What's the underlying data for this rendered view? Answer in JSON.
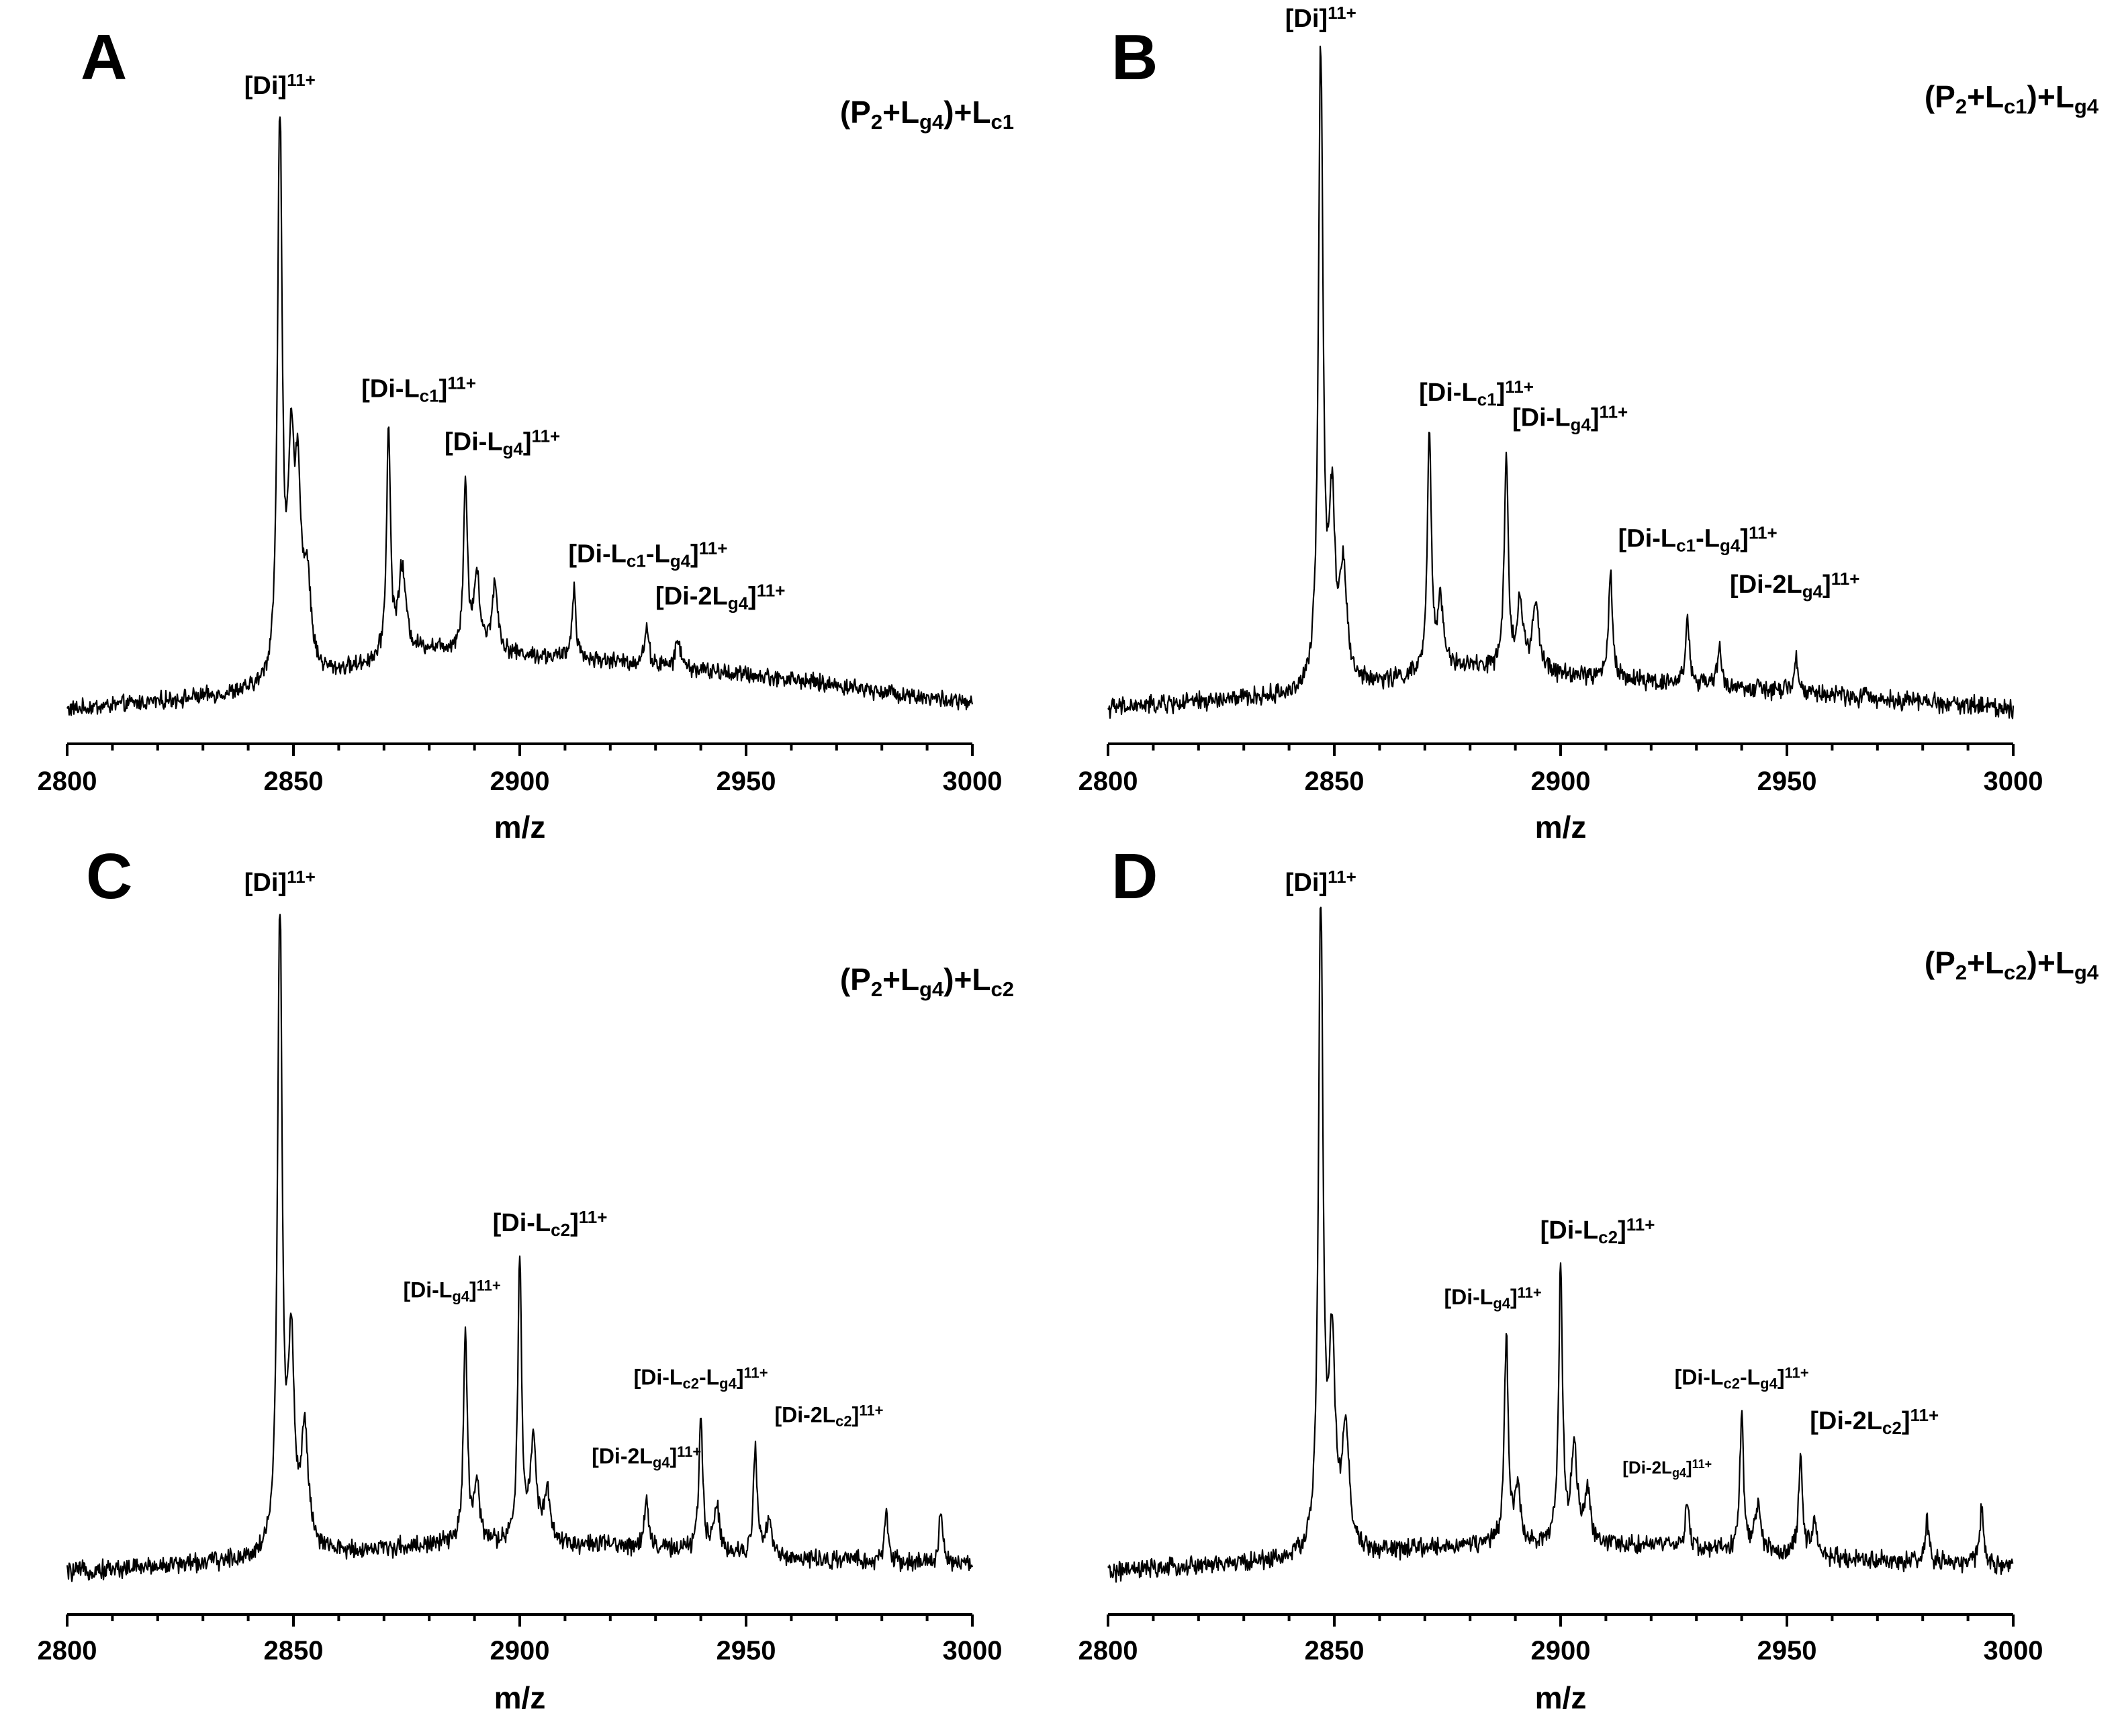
{
  "figure": {
    "colors": {
      "trace": "#000000",
      "axis": "#000000",
      "background": "#ffffff"
    }
  },
  "chart_data": [
    {
      "type": "line",
      "panel": "A",
      "condition": {
        "base": "(P",
        "s1": "2",
        "m1": "+L",
        "s2": "g4",
        "m2": ")+L",
        "s3": "c1"
      },
      "xlabel": "m/z",
      "xlim": [
        2800,
        3000
      ],
      "xticks": [
        "2800",
        "2850",
        "2900",
        "2950",
        "3000"
      ],
      "ylim": [
        0,
        1
      ],
      "baseline": [
        [
          2800,
          0.02
        ],
        [
          2845,
          0.05
        ],
        [
          2880,
          0.12
        ],
        [
          2920,
          0.1
        ],
        [
          2960,
          0.07
        ],
        [
          3000,
          0.03
        ]
      ],
      "peaks": [
        {
          "mz": 2847,
          "h": 0.95,
          "w": 0.6
        },
        {
          "mz": 2849.5,
          "h": 0.33,
          "w": 0.8
        },
        {
          "mz": 2851,
          "h": 0.28,
          "w": 0.8
        },
        {
          "mz": 2853,
          "h": 0.15,
          "w": 1.0
        },
        {
          "mz": 2871,
          "h": 0.38,
          "w": 0.5
        },
        {
          "mz": 2874,
          "h": 0.14,
          "w": 1.0
        },
        {
          "mz": 2888,
          "h": 0.28,
          "w": 0.5
        },
        {
          "mz": 2890.5,
          "h": 0.12,
          "w": 0.8
        },
        {
          "mz": 2894.5,
          "h": 0.11,
          "w": 0.8
        },
        {
          "mz": 2912,
          "h": 0.12,
          "w": 0.5
        },
        {
          "mz": 2928,
          "h": 0.06,
          "w": 0.6
        },
        {
          "mz": 2935,
          "h": 0.05,
          "w": 0.6
        }
      ],
      "annotations": [
        {
          "mz": 2847,
          "t": [
            "[Di]",
            "",
            "",
            "",
            "",
            "11+"
          ]
        },
        {
          "mz": 2871,
          "t": [
            "[Di-L",
            "c1",
            "]",
            "",
            "",
            "11+"
          ]
        },
        {
          "mz": 2888,
          "t": [
            "[Di-L",
            "g4",
            "]",
            "",
            "",
            "11+"
          ]
        },
        {
          "mz": 2912,
          "t": [
            "[Di-L",
            "c1",
            "-L",
            "g4",
            "]",
            "11+"
          ]
        },
        {
          "mz": 2928,
          "t": [
            "[Di-2L",
            "g4",
            "]",
            "",
            "",
            "11+"
          ]
        }
      ]
    },
    {
      "type": "line",
      "panel": "B",
      "condition": {
        "base": "(P",
        "s1": "2",
        "m1": "+L",
        "s2": "c1",
        "m2": ")+L",
        "s3": "g4"
      },
      "xlabel": "m/z",
      "xlim": [
        2800,
        3000
      ],
      "xticks": [
        "2800",
        "2850",
        "2900",
        "2950",
        "3000"
      ],
      "ylim": [
        0,
        1
      ],
      "baseline": [
        [
          2800,
          0.02
        ],
        [
          2845,
          0.04
        ],
        [
          2880,
          0.08
        ],
        [
          2920,
          0.06
        ],
        [
          2960,
          0.04
        ],
        [
          3000,
          0.02
        ]
      ],
      "peaks": [
        {
          "mz": 2847,
          "h": 0.96,
          "w": 0.6
        },
        {
          "mz": 2849.5,
          "h": 0.26,
          "w": 0.8
        },
        {
          "mz": 2852,
          "h": 0.17,
          "w": 0.9
        },
        {
          "mz": 2871,
          "h": 0.36,
          "w": 0.5
        },
        {
          "mz": 2873.5,
          "h": 0.1,
          "w": 0.9
        },
        {
          "mz": 2888,
          "h": 0.32,
          "w": 0.5
        },
        {
          "mz": 2891,
          "h": 0.1,
          "w": 0.8
        },
        {
          "mz": 2894.5,
          "h": 0.1,
          "w": 0.8
        },
        {
          "mz": 2911,
          "h": 0.16,
          "w": 0.5
        },
        {
          "mz": 2928,
          "h": 0.1,
          "w": 0.5
        },
        {
          "mz": 2935,
          "h": 0.06,
          "w": 0.5
        },
        {
          "mz": 2952,
          "h": 0.05,
          "w": 0.5
        }
      ],
      "annotations": [
        {
          "mz": 2847,
          "t": [
            "[Di]",
            "",
            "",
            "",
            "",
            "11+"
          ]
        },
        {
          "mz": 2871,
          "t": [
            "[Di-L",
            "c1",
            "]",
            "",
            "",
            "11+"
          ]
        },
        {
          "mz": 2888,
          "t": [
            "[Di-L",
            "g4",
            "]",
            "",
            "",
            "11+"
          ]
        },
        {
          "mz": 2911,
          "t": [
            "[Di-L",
            "c1",
            "-L",
            "g4",
            "]",
            "11+"
          ]
        },
        {
          "mz": 2928,
          "t": [
            "[Di-2L",
            "g4",
            "]",
            "",
            "",
            "11+"
          ]
        }
      ]
    },
    {
      "type": "line",
      "panel": "C",
      "condition": {
        "base": "(P",
        "s1": "2",
        "m1": "+L",
        "s2": "g4",
        "m2": ")+L",
        "s3": "c2"
      },
      "xlabel": "m/z",
      "xlim": [
        2800,
        3000
      ],
      "xticks": [
        "2800",
        "2850",
        "2900",
        "2950",
        "3000"
      ],
      "ylim": [
        0,
        1
      ],
      "baseline": [
        [
          2800,
          0.02
        ],
        [
          2845,
          0.04
        ],
        [
          2880,
          0.06
        ],
        [
          2920,
          0.06
        ],
        [
          2960,
          0.04
        ],
        [
          3000,
          0.03
        ]
      ],
      "peaks": [
        {
          "mz": 2847,
          "h": 0.97,
          "w": 0.6
        },
        {
          "mz": 2849.5,
          "h": 0.3,
          "w": 0.8
        },
        {
          "mz": 2852.5,
          "h": 0.18,
          "w": 0.9
        },
        {
          "mz": 2888,
          "h": 0.32,
          "w": 0.5
        },
        {
          "mz": 2890.5,
          "h": 0.08,
          "w": 0.8
        },
        {
          "mz": 2900,
          "h": 0.42,
          "w": 0.5
        },
        {
          "mz": 2903,
          "h": 0.15,
          "w": 0.8
        },
        {
          "mz": 2906,
          "h": 0.08,
          "w": 0.8
        },
        {
          "mz": 2928,
          "h": 0.08,
          "w": 0.5
        },
        {
          "mz": 2940,
          "h": 0.2,
          "w": 0.5
        },
        {
          "mz": 2943.5,
          "h": 0.07,
          "w": 0.8
        },
        {
          "mz": 2952,
          "h": 0.16,
          "w": 0.5
        },
        {
          "mz": 2955,
          "h": 0.05,
          "w": 0.8
        },
        {
          "mz": 2981,
          "h": 0.07,
          "w": 0.5
        },
        {
          "mz": 2993,
          "h": 0.08,
          "w": 0.5
        }
      ],
      "annotations": [
        {
          "mz": 2847,
          "t": [
            "[Di]",
            "",
            "",
            "",
            "",
            "11+"
          ]
        },
        {
          "mz": 2888,
          "t": [
            "[Di-L",
            "g4",
            "]",
            "",
            "",
            "11+"
          ]
        },
        {
          "mz": 2900,
          "t": [
            "[Di-L",
            "c2",
            "]",
            "",
            "",
            "11+"
          ]
        },
        {
          "mz": 2928,
          "t": [
            "[Di-2L",
            "g4",
            "]",
            "",
            "",
            "11+"
          ]
        },
        {
          "mz": 2940,
          "t": [
            "[Di-L",
            "c2",
            "-L",
            "g4",
            "]",
            "11+"
          ]
        },
        {
          "mz": 2952,
          "t": [
            "[Di-2L",
            "c2",
            "]",
            "",
            "",
            "11+"
          ]
        }
      ]
    },
    {
      "type": "line",
      "panel": "D",
      "condition": {
        "base": "(P",
        "s1": "2",
        "m1": "+L",
        "s2": "c2",
        "m2": ")+L",
        "s3": "g4"
      },
      "xlabel": "m/z",
      "xlim": [
        2800,
        3000
      ],
      "xticks": [
        "2800",
        "2850",
        "2900",
        "2950",
        "3000"
      ],
      "ylim": [
        0,
        1
      ],
      "baseline": [
        [
          2800,
          0.02
        ],
        [
          2845,
          0.04
        ],
        [
          2880,
          0.06
        ],
        [
          2920,
          0.06
        ],
        [
          2960,
          0.04
        ],
        [
          3000,
          0.03
        ]
      ],
      "peaks": [
        {
          "mz": 2847,
          "h": 0.98,
          "w": 0.6
        },
        {
          "mz": 2849.5,
          "h": 0.3,
          "w": 0.8
        },
        {
          "mz": 2852.5,
          "h": 0.18,
          "w": 0.9
        },
        {
          "mz": 2888,
          "h": 0.31,
          "w": 0.5
        },
        {
          "mz": 2890.5,
          "h": 0.08,
          "w": 0.8
        },
        {
          "mz": 2900,
          "h": 0.41,
          "w": 0.5
        },
        {
          "mz": 2903,
          "h": 0.14,
          "w": 0.8
        },
        {
          "mz": 2906,
          "h": 0.07,
          "w": 0.8
        },
        {
          "mz": 2928,
          "h": 0.07,
          "w": 0.5
        },
        {
          "mz": 2940,
          "h": 0.2,
          "w": 0.5
        },
        {
          "mz": 2943.5,
          "h": 0.07,
          "w": 0.8
        },
        {
          "mz": 2953,
          "h": 0.15,
          "w": 0.5
        },
        {
          "mz": 2956,
          "h": 0.05,
          "w": 0.8
        },
        {
          "mz": 2981,
          "h": 0.06,
          "w": 0.5
        },
        {
          "mz": 2993,
          "h": 0.08,
          "w": 0.5
        }
      ],
      "annotations": [
        {
          "mz": 2847,
          "t": [
            "[Di]",
            "",
            "",
            "",
            "",
            "11+"
          ]
        },
        {
          "mz": 2888,
          "t": [
            "[Di-L",
            "g4",
            "]",
            "",
            "",
            "11+"
          ]
        },
        {
          "mz": 2900,
          "t": [
            "[Di-L",
            "c2",
            "]",
            "",
            "",
            "11+"
          ]
        },
        {
          "mz": 2928,
          "t": [
            "[Di-2L",
            "g4",
            "]",
            "",
            "",
            "11+"
          ]
        },
        {
          "mz": 2940,
          "t": [
            "[Di-L",
            "c2",
            "-L",
            "g4",
            "]",
            "11+"
          ]
        },
        {
          "mz": 2953,
          "t": [
            "[Di-2L",
            "c2",
            "]",
            "",
            "",
            "11+"
          ]
        }
      ]
    }
  ]
}
